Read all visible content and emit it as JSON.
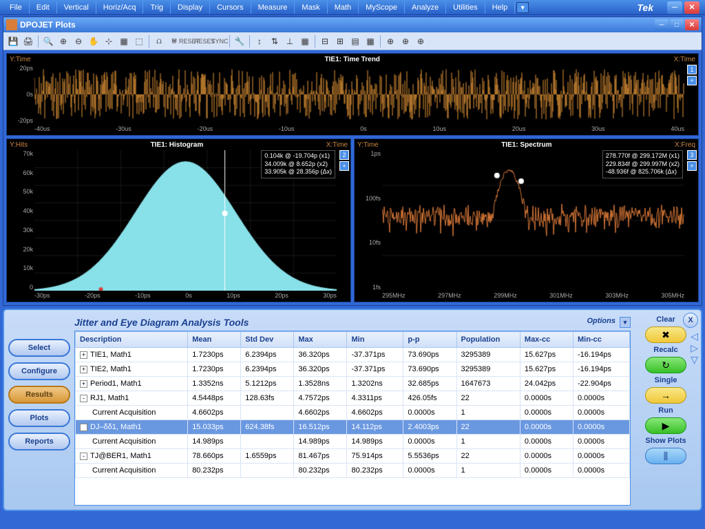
{
  "menubar": {
    "items": [
      "File",
      "Edit",
      "Vertical",
      "Horiz/Acq",
      "Trig",
      "Display",
      "Cursors",
      "Measure",
      "Mask",
      "Math",
      "MyScope",
      "Analyze",
      "Utilities",
      "Help"
    ],
    "brand": "Tek"
  },
  "dpo": {
    "title": "DPOJET Plots"
  },
  "plots": {
    "top": {
      "ylabel": "Y:Time",
      "title": "TIE1: Time Trend",
      "xlabel": "X:Time",
      "yticks": [
        "20ps",
        "0s",
        "-20ps"
      ],
      "xticks": [
        "-40us",
        "-30us",
        "-20us",
        "-10us",
        "0s",
        "10us",
        "20us",
        "30us",
        "40us"
      ],
      "color": "#e89838",
      "bg": "#000000",
      "badge": "1"
    },
    "hist": {
      "ylabel": "Y:Hits",
      "title": "TIE1: Histogram",
      "xlabel": "X:Time",
      "yticks": [
        "70k",
        "60k",
        "50k",
        "40k",
        "30k",
        "20k",
        "10k",
        "0"
      ],
      "xticks": [
        "-30ps",
        "-20ps",
        "-10ps",
        "0s",
        "10ps",
        "20ps",
        "30ps"
      ],
      "fill": "#88e0e8",
      "bg": "#000000",
      "markers": [
        "0.104k @ -19.704p (x1)",
        "34.009k @  8.652p (x2)",
        "33.905k @ 28.356p (Δx)"
      ],
      "badge": "2"
    },
    "spec": {
      "ylabel": "Y:Time",
      "title": "TIE1: Spectrum",
      "xlabel": "X:Freq",
      "yticks": [
        "1ps",
        "100fs",
        "10fs",
        "1fs"
      ],
      "xticks": [
        "295MHz",
        "297MHz",
        "299MHz",
        "301MHz",
        "303MHz",
        "305MHz"
      ],
      "color": "#d87838",
      "bg": "#000000",
      "markers": [
        "278.770f @ 299.172M (x1)",
        "229.834f @ 299.997M (x2)",
        "-48.936f @ 825.706k (Δx)"
      ],
      "badge": "3"
    }
  },
  "results": {
    "title": "Jitter and Eye Diagram Analysis Tools",
    "options": "Options",
    "nav": [
      "Select",
      "Configure",
      "Results",
      "Plots",
      "Reports"
    ],
    "active_nav": "Results",
    "columns": [
      "Description",
      "Mean",
      "Std Dev",
      "Max",
      "Min",
      "p-p",
      "Population",
      "Max-cc",
      "Min-cc"
    ],
    "rows": [
      {
        "exp": "+",
        "cells": [
          "TIE1, Math1",
          "1.7230ps",
          "6.2394ps",
          "36.320ps",
          "-37.371ps",
          "73.690ps",
          "3295389",
          "15.627ps",
          "-16.194ps"
        ]
      },
      {
        "exp": "+",
        "cells": [
          "TIE2, Math1",
          "1.7230ps",
          "6.2394ps",
          "36.320ps",
          "-37.371ps",
          "73.690ps",
          "3295389",
          "15.627ps",
          "-16.194ps"
        ]
      },
      {
        "exp": "+",
        "cells": [
          "Period1, Math1",
          "1.3352ns",
          "5.1212ps",
          "1.3528ns",
          "1.3202ns",
          "32.685ps",
          "1647673",
          "24.042ps",
          "-22.904ps"
        ]
      },
      {
        "exp": "-",
        "cells": [
          "RJ1, Math1",
          "4.5448ps",
          "128.63fs",
          "4.7572ps",
          "4.3311ps",
          "426.05fs",
          "22",
          "0.0000s",
          "0.0000s"
        ]
      },
      {
        "sub": true,
        "cells": [
          "Current Acquisition",
          "4.6602ps",
          "",
          "4.6602ps",
          "4.6602ps",
          "0.0000s",
          "1",
          "0.0000s",
          "0.0000s"
        ]
      },
      {
        "exp": "-",
        "sel": true,
        "cells": [
          "DJ–δδ1, Math1",
          "15.033ps",
          "624.38fs",
          "16.512ps",
          "14.112ps",
          "2.4003ps",
          "22",
          "0.0000s",
          "0.0000s"
        ]
      },
      {
        "sub": true,
        "cells": [
          "Current Acquisition",
          "14.989ps",
          "",
          "14.989ps",
          "14.989ps",
          "0.0000s",
          "1",
          "0.0000s",
          "0.0000s"
        ]
      },
      {
        "exp": "-",
        "cells": [
          "TJ@BER1, Math1",
          "78.660ps",
          "1.6559ps",
          "81.467ps",
          "75.914ps",
          "5.5536ps",
          "22",
          "0.0000s",
          "0.0000s"
        ]
      },
      {
        "sub": true,
        "cells": [
          "Current Acquisition",
          "80.232ps",
          "",
          "80.232ps",
          "80.232ps",
          "0.0000s",
          "1",
          "0.0000s",
          "0.0000s"
        ]
      }
    ],
    "controls": {
      "clear": "Clear",
      "recalc": "Recalc",
      "single": "Single",
      "run": "Run",
      "showplots": "Show Plots"
    }
  }
}
